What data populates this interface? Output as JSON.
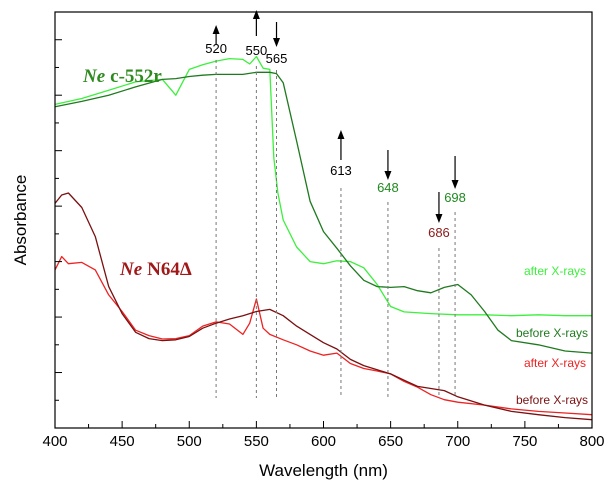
{
  "chart_data": {
    "type": "line",
    "xlabel": "Wavelength (nm)",
    "ylabel": "Absorbance",
    "xlim": [
      400,
      800
    ],
    "ylim": [
      0,
      1
    ],
    "x_ticks": [
      "400",
      "450",
      "500",
      "550",
      "600",
      "650",
      "700",
      "750",
      "800"
    ],
    "sample_labels": [
      {
        "prefix": "Ne",
        "suffix": "c-552r",
        "color": "#2e8b1e"
      },
      {
        "prefix": "Ne",
        "suffix": "N64Δ",
        "color": "#a01818"
      }
    ],
    "markers": [
      {
        "label": "520",
        "x": 520,
        "direction": "up",
        "color": "#000000"
      },
      {
        "label": "550",
        "x": 550,
        "direction": "up",
        "color": "#000000"
      },
      {
        "label": "565",
        "x": 565,
        "direction": "down",
        "color": "#000000"
      },
      {
        "label": "613",
        "x": 613,
        "direction": "up",
        "color": "#000000"
      },
      {
        "label": "648",
        "x": 648,
        "direction": "down",
        "color": "#1f8a1f"
      },
      {
        "label": "686",
        "x": 686,
        "direction": "down",
        "color": "#8b1a1a"
      },
      {
        "label": "698",
        "x": 698,
        "direction": "down",
        "color": "#1f8a1f"
      }
    ],
    "series": [
      {
        "name": "after X-rays",
        "group": "c-552r",
        "color": "#3cf03c",
        "x": [
          400,
          420,
          440,
          460,
          480,
          490,
          500,
          510,
          520,
          530,
          540,
          545,
          550,
          555,
          560,
          563,
          566,
          570,
          580,
          590,
          600,
          610,
          620,
          630,
          640,
          650,
          660,
          680,
          700,
          720,
          740,
          760,
          780,
          800
        ],
        "y": [
          0.778,
          0.792,
          0.812,
          0.832,
          0.838,
          0.8,
          0.862,
          0.873,
          0.882,
          0.888,
          0.886,
          0.875,
          0.893,
          0.865,
          0.862,
          0.65,
          0.565,
          0.5,
          0.435,
          0.4,
          0.395,
          0.402,
          0.4,
          0.385,
          0.345,
          0.292,
          0.279,
          0.275,
          0.272,
          0.272,
          0.27,
          0.272,
          0.27,
          0.27
        ]
      },
      {
        "name": "before X-rays",
        "group": "c-552r",
        "color": "#1f7a1f",
        "x": [
          400,
          420,
          440,
          460,
          480,
          490,
          500,
          510,
          520,
          530,
          540,
          550,
          560,
          565,
          570,
          580,
          590,
          600,
          610,
          620,
          630,
          640,
          650,
          660,
          670,
          680,
          690,
          700,
          710,
          720,
          730,
          740,
          760,
          780,
          800
        ],
        "y": [
          0.772,
          0.785,
          0.8,
          0.82,
          0.838,
          0.84,
          0.845,
          0.848,
          0.85,
          0.85,
          0.85,
          0.855,
          0.855,
          0.852,
          0.83,
          0.69,
          0.545,
          0.472,
          0.432,
          0.39,
          0.355,
          0.34,
          0.338,
          0.34,
          0.33,
          0.325,
          0.338,
          0.345,
          0.32,
          0.28,
          0.235,
          0.21,
          0.2,
          0.185,
          0.18
        ]
      },
      {
        "name": "after X-rays",
        "group": "N64Δ",
        "color": "#ee2222",
        "x": [
          400,
          405,
          410,
          420,
          430,
          440,
          450,
          460,
          470,
          480,
          490,
          500,
          510,
          520,
          530,
          540,
          545,
          550,
          555,
          560,
          570,
          580,
          590,
          600,
          610,
          620,
          630,
          640,
          650,
          660,
          670,
          680,
          690,
          700,
          720,
          740,
          760,
          780,
          800
        ],
        "y": [
          0.38,
          0.412,
          0.395,
          0.398,
          0.38,
          0.32,
          0.28,
          0.235,
          0.222,
          0.214,
          0.215,
          0.222,
          0.245,
          0.255,
          0.25,
          0.225,
          0.252,
          0.31,
          0.24,
          0.225,
          0.212,
          0.2,
          0.185,
          0.175,
          0.18,
          0.155,
          0.143,
          0.137,
          0.13,
          0.112,
          0.098,
          0.08,
          0.068,
          0.062,
          0.055,
          0.046,
          0.04,
          0.036,
          0.032
        ]
      },
      {
        "name": "before X-rays",
        "group": "N64Δ",
        "color": "#7a1010",
        "x": [
          400,
          405,
          410,
          420,
          430,
          440,
          450,
          460,
          470,
          480,
          490,
          500,
          510,
          520,
          530,
          540,
          550,
          560,
          570,
          580,
          590,
          600,
          610,
          620,
          630,
          640,
          650,
          660,
          670,
          680,
          690,
          700,
          720,
          740,
          760,
          780,
          800
        ],
        "y": [
          0.54,
          0.56,
          0.565,
          0.53,
          0.46,
          0.34,
          0.275,
          0.23,
          0.215,
          0.21,
          0.212,
          0.22,
          0.24,
          0.252,
          0.262,
          0.27,
          0.28,
          0.285,
          0.27,
          0.245,
          0.225,
          0.205,
          0.19,
          0.165,
          0.15,
          0.14,
          0.13,
          0.115,
          0.1,
          0.095,
          0.09,
          0.075,
          0.055,
          0.04,
          0.032,
          0.025,
          0.02
        ]
      }
    ],
    "series_labels": [
      {
        "text": "after X-rays",
        "color": "#3cf03c"
      },
      {
        "text": "before X-rays",
        "color": "#1f7a1f"
      },
      {
        "text": "after X-rays",
        "color": "#ee2222"
      },
      {
        "text": "before X-rays",
        "color": "#7a1010"
      }
    ]
  }
}
